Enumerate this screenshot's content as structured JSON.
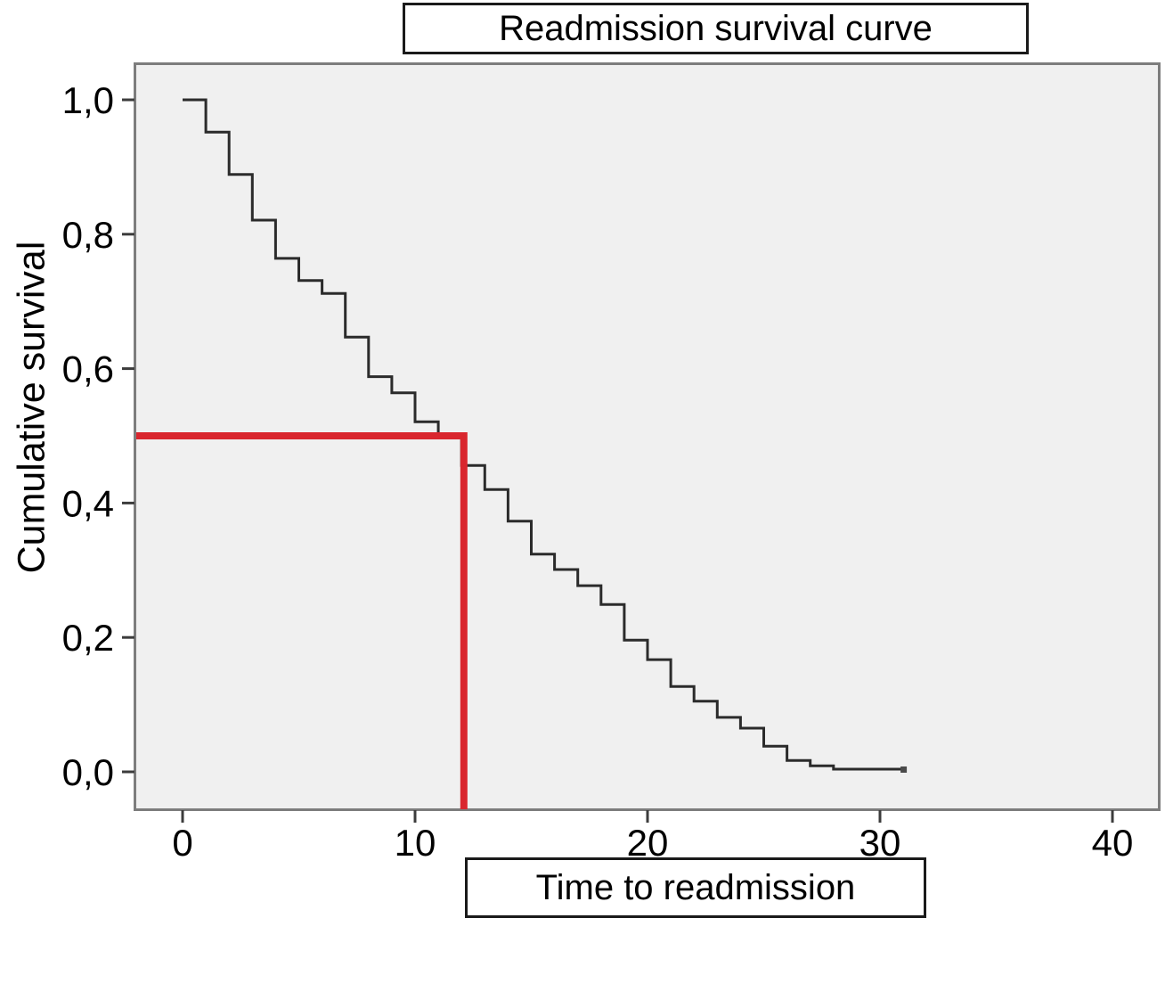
{
  "page": {
    "background": "#ffffff"
  },
  "chart_data": {
    "type": "line",
    "subtype": "kaplan_meier_step",
    "title": "Readmission survival curve",
    "xlabel": "Time to readmission",
    "ylabel": "Cumulative survival",
    "grid": false,
    "legend": null,
    "x_axis": {
      "range": [
        -2.1,
        42.1
      ],
      "ticks": [
        {
          "v": 0,
          "label": "0"
        },
        {
          "v": 10,
          "label": "10"
        },
        {
          "v": 20,
          "label": "20"
        },
        {
          "v": 30,
          "label": "30"
        },
        {
          "v": 40,
          "label": "40"
        }
      ]
    },
    "y_axis": {
      "range": [
        -0.06,
        1.06
      ],
      "decimal_separator": ",",
      "ticks": [
        {
          "v": 1.0,
          "label": "1,0"
        },
        {
          "v": 0.8,
          "label": "0,8"
        },
        {
          "v": 0.6,
          "label": "0,6"
        },
        {
          "v": 0.4,
          "label": "0,4"
        },
        {
          "v": 0.2,
          "label": "0,2"
        },
        {
          "v": 0.0,
          "label": "0,0"
        }
      ]
    },
    "series": {
      "name": "Cumulative survival",
      "drop_times": [
        0,
        1,
        2,
        3,
        4,
        5,
        6,
        7,
        8,
        9,
        10,
        11,
        12,
        13,
        14,
        15,
        16,
        17,
        18,
        19,
        20,
        21,
        22,
        23,
        24,
        25,
        26,
        27,
        28
      ],
      "survival": [
        1.0,
        0.952,
        0.889,
        0.821,
        0.764,
        0.731,
        0.712,
        0.647,
        0.588,
        0.564,
        0.521,
        0.499,
        0.456,
        0.42,
        0.373,
        0.324,
        0.301,
        0.277,
        0.249,
        0.196,
        0.167,
        0.127,
        0.105,
        0.081,
        0.065,
        0.038,
        0.017,
        0.009,
        0.004
      ],
      "end_time": 31,
      "end_marker": true
    },
    "reference_line": {
      "purpose": "median survival indicator",
      "y_value": 0.5,
      "x_value": 12.1,
      "color": "#d9262e"
    },
    "colors": {
      "plot_bg": "#f0f0f0",
      "plot_border": "#7d7d7d",
      "curve": "#2b2b2b",
      "tick": "#3c3c3c",
      "text": "#000000",
      "reference": "#d9262e",
      "end_marker": "#4a4a4a"
    }
  }
}
